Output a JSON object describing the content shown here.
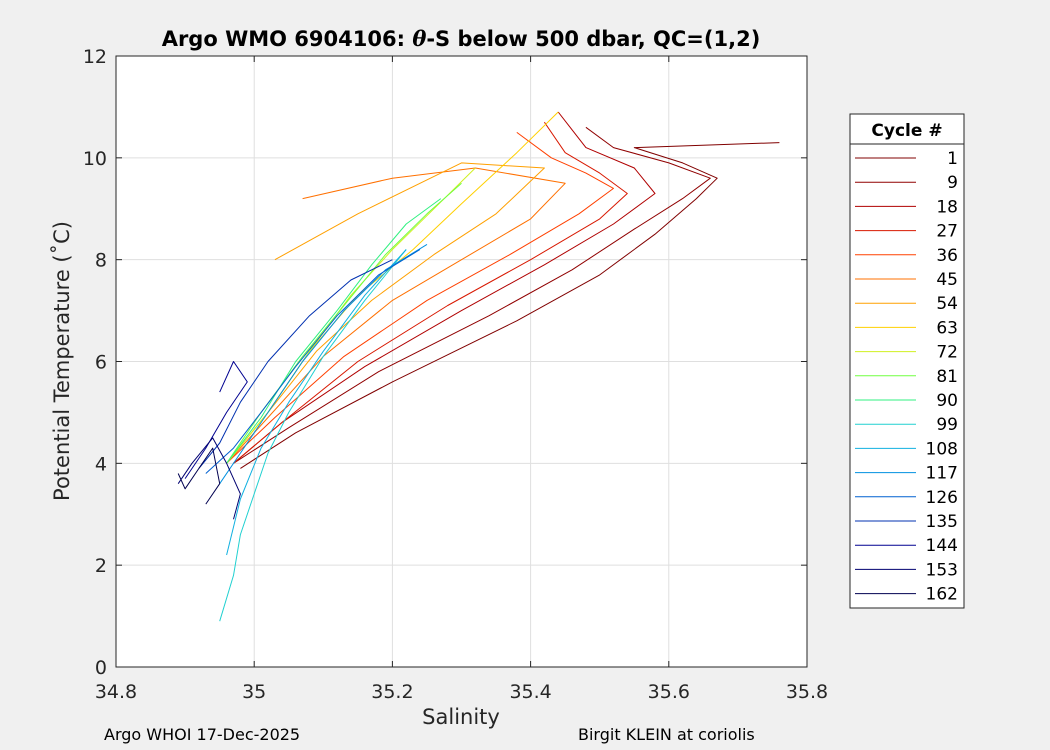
{
  "chart_data": {
    "type": "line",
    "title": "Argo WMO 6904106: θ-S below 500 dbar,  QC=(1,2)",
    "title_parts": {
      "prefix": "Argo WMO 6904106: ",
      "theta": "θ",
      "suffix": "-S below 500 dbar,  QC=(1,2)"
    },
    "xlabel": "Salinity",
    "ylabel": "Potential Temperature (˚C)",
    "xlim": [
      34.8,
      35.8
    ],
    "ylim": [
      0,
      12
    ],
    "xticks": [
      34.8,
      35.0,
      35.2,
      35.4,
      35.6,
      35.8
    ],
    "xtick_labels": [
      "34.8",
      "35",
      "35.2",
      "35.4",
      "35.6",
      "35.8"
    ],
    "yticks": [
      0,
      2,
      4,
      6,
      8,
      10,
      12
    ],
    "ytick_labels": [
      "0",
      "2",
      "4",
      "6",
      "8",
      "10",
      "12"
    ],
    "grid": true,
    "legend_title": "Cycle #",
    "legend_position": "outside-right",
    "series": [
      {
        "name": "1",
        "color": "#800000",
        "s": [
          34.98,
          35.06,
          35.2,
          35.38,
          35.5,
          35.58,
          35.64,
          35.67,
          35.62,
          35.55,
          35.76
        ],
        "t": [
          3.9,
          4.6,
          5.6,
          6.8,
          7.7,
          8.5,
          9.2,
          9.6,
          9.9,
          10.2,
          10.3
        ]
      },
      {
        "name": "9",
        "color": "#900000",
        "s": [
          34.97,
          35.05,
          35.18,
          35.34,
          35.46,
          35.55,
          35.62,
          35.66,
          35.6,
          35.52,
          35.48
        ],
        "t": [
          4.0,
          4.7,
          5.8,
          6.9,
          7.8,
          8.6,
          9.2,
          9.6,
          9.9,
          10.2,
          10.6
        ]
      },
      {
        "name": "18",
        "color": "#b00000",
        "s": [
          34.97,
          35.04,
          35.16,
          35.3,
          35.42,
          35.52,
          35.58,
          35.55,
          35.48,
          35.44
        ],
        "t": [
          4.0,
          4.8,
          5.9,
          7.0,
          7.9,
          8.7,
          9.3,
          9.8,
          10.2,
          10.9
        ]
      },
      {
        "name": "27",
        "color": "#d81800",
        "s": [
          34.97,
          35.04,
          35.15,
          35.28,
          35.4,
          35.5,
          35.54,
          35.5,
          35.45,
          35.42
        ],
        "t": [
          4.0,
          4.8,
          6.0,
          7.1,
          8.0,
          8.8,
          9.3,
          9.7,
          10.1,
          10.7
        ]
      },
      {
        "name": "36",
        "color": "#ff4000",
        "s": [
          34.96,
          35.03,
          35.13,
          35.25,
          35.37,
          35.47,
          35.52,
          35.48,
          35.43,
          35.38
        ],
        "t": [
          4.0,
          4.9,
          6.1,
          7.2,
          8.1,
          8.9,
          9.4,
          9.7,
          10.0,
          10.5
        ]
      },
      {
        "name": "45",
        "color": "#ff7000",
        "s": [
          34.96,
          35.02,
          35.1,
          35.2,
          35.3,
          35.4,
          35.45,
          35.32,
          35.2,
          35.07
        ],
        "t": [
          4.0,
          4.9,
          6.1,
          7.2,
          8.0,
          8.8,
          9.5,
          9.8,
          9.6,
          9.2
        ]
      },
      {
        "name": "54",
        "color": "#ffa000",
        "s": [
          34.96,
          35.02,
          35.09,
          35.17,
          35.26,
          35.35,
          35.42,
          35.3,
          35.15,
          35.03
        ],
        "t": [
          4.0,
          5.0,
          6.2,
          7.2,
          8.1,
          8.9,
          9.8,
          9.9,
          8.9,
          8.0
        ]
      },
      {
        "name": "63",
        "color": "#ffd000",
        "s": [
          34.96,
          35.02,
          35.08,
          35.15,
          35.23,
          35.3,
          35.38,
          35.44
        ],
        "t": [
          4.0,
          5.0,
          6.2,
          7.3,
          8.2,
          9.1,
          10.1,
          10.9
        ]
      },
      {
        "name": "72",
        "color": "#d0f020",
        "s": [
          34.96,
          35.02,
          35.08,
          35.14,
          35.2,
          35.26,
          35.32
        ],
        "t": [
          4.0,
          5.0,
          6.2,
          7.3,
          8.2,
          9.0,
          9.8
        ]
      },
      {
        "name": "81",
        "color": "#70ff40",
        "s": [
          34.96,
          35.01,
          35.07,
          35.13,
          35.19,
          35.25,
          35.3
        ],
        "t": [
          4.0,
          5.0,
          6.1,
          7.1,
          8.1,
          8.9,
          9.5
        ]
      },
      {
        "name": "90",
        "color": "#30f080",
        "s": [
          34.96,
          35.01,
          35.06,
          35.12,
          35.17,
          35.22,
          35.27
        ],
        "t": [
          4.0,
          4.9,
          6.0,
          7.0,
          7.9,
          8.7,
          9.2
        ]
      },
      {
        "name": "99",
        "color": "#20d0d0",
        "s": [
          34.95,
          34.97,
          34.98,
          35.0,
          35.02,
          35.05,
          35.1,
          35.16,
          35.22
        ],
        "t": [
          0.9,
          1.8,
          2.6,
          3.4,
          4.2,
          5.0,
          6.1,
          7.2,
          8.2
        ]
      },
      {
        "name": "108",
        "color": "#10b0e0",
        "s": [
          34.96,
          34.98,
          35.01,
          35.05,
          35.1,
          35.16,
          35.22
        ],
        "t": [
          2.2,
          3.3,
          4.3,
          5.2,
          6.2,
          7.3,
          8.2
        ]
      },
      {
        "name": "117",
        "color": "#0090e0",
        "s": [
          34.95,
          34.98,
          35.02,
          35.07,
          35.13,
          35.19,
          35.25
        ],
        "t": [
          3.6,
          4.2,
          5.0,
          6.0,
          7.0,
          7.8,
          8.3
        ]
      },
      {
        "name": "126",
        "color": "#0060d0",
        "s": [
          34.93,
          34.97,
          35.01,
          35.06,
          35.12,
          35.18,
          35.24
        ],
        "t": [
          3.8,
          4.3,
          5.0,
          5.9,
          6.9,
          7.7,
          8.2
        ]
      },
      {
        "name": "135",
        "color": "#0030b0",
        "s": [
          34.92,
          34.95,
          34.98,
          35.02,
          35.08,
          35.14,
          35.2
        ],
        "t": [
          3.9,
          4.4,
          5.2,
          6.0,
          6.9,
          7.6,
          8.0
        ]
      },
      {
        "name": "144",
        "color": "#000090",
        "s": [
          34.9,
          34.93,
          34.96,
          34.99,
          34.97,
          34.95
        ],
        "t": [
          3.7,
          4.3,
          5.0,
          5.6,
          6.0,
          5.4
        ]
      },
      {
        "name": "153",
        "color": "#000070",
        "s": [
          34.89,
          34.91,
          34.94,
          34.96,
          34.98,
          34.97
        ],
        "t": [
          3.6,
          4.0,
          4.5,
          4.0,
          3.4,
          2.9
        ]
      },
      {
        "name": "162",
        "color": "#000050",
        "s": [
          34.89,
          34.9,
          34.92,
          34.94,
          34.95,
          34.93
        ],
        "t": [
          3.8,
          3.5,
          3.9,
          4.3,
          3.6,
          3.2
        ]
      }
    ]
  },
  "footer": {
    "left": "Argo WHOI 17-Dec-2025",
    "right": "Birgit KLEIN at coriolis"
  }
}
